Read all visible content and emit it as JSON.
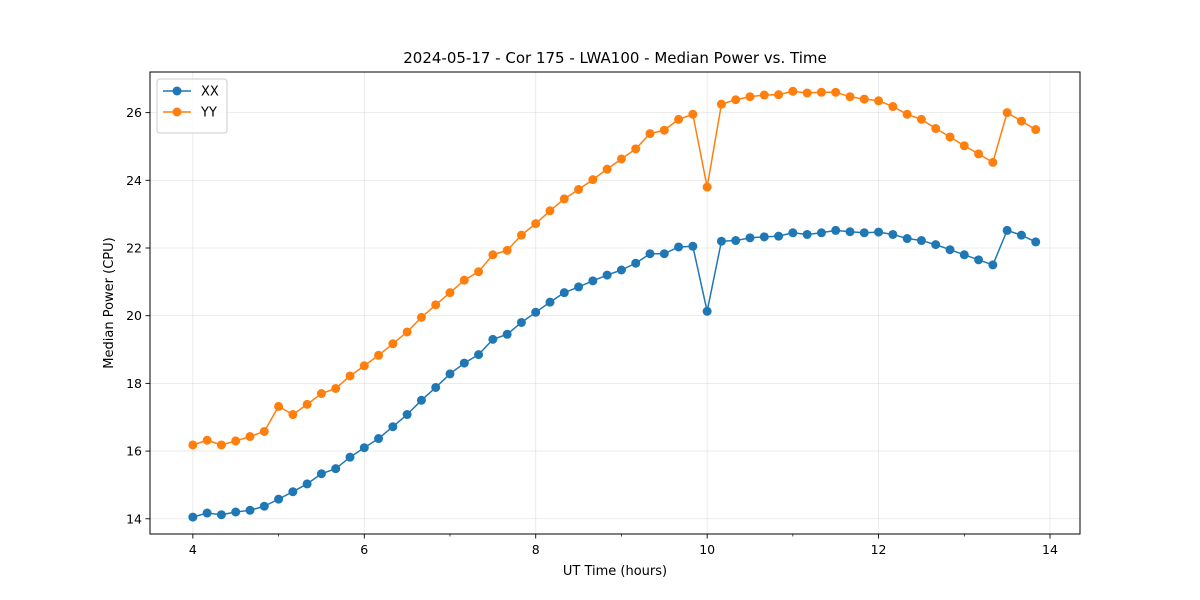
{
  "chart_data": {
    "type": "line",
    "title": "2024-05-17 - Cor 175 - LWA100 - Median Power vs. Time",
    "xlabel": "UT Time (hours)",
    "ylabel": "Median Power (CPU)",
    "xlim": [
      3.5,
      14.35
    ],
    "ylim": [
      13.55,
      27.2
    ],
    "xticks": [
      4,
      6,
      8,
      10,
      12,
      14
    ],
    "yticks": [
      14,
      16,
      18,
      20,
      22,
      24,
      26
    ],
    "grid": true,
    "legend_position": "top-left",
    "x": [
      4.0,
      4.1667,
      4.3333,
      4.5,
      4.6667,
      4.8333,
      5.0,
      5.1667,
      5.3333,
      5.5,
      5.6667,
      5.8333,
      6.0,
      6.1667,
      6.3333,
      6.5,
      6.6667,
      6.8333,
      7.0,
      7.1667,
      7.3333,
      7.5,
      7.6667,
      7.8333,
      8.0,
      8.1667,
      8.3333,
      8.5,
      8.6667,
      8.8333,
      9.0,
      9.1667,
      9.3333,
      9.5,
      9.6667,
      9.8333,
      10.0,
      10.1667,
      10.3333,
      10.5,
      10.6667,
      10.8333,
      11.0,
      11.1667,
      11.3333,
      11.5,
      11.6667,
      11.8333,
      12.0,
      12.1667,
      12.3333,
      12.5,
      12.6667,
      12.8333,
      13.0,
      13.1667,
      13.3333,
      13.5,
      13.6667,
      13.8333
    ],
    "series": [
      {
        "name": "XX",
        "color": "#1f77b4",
        "values": [
          14.05,
          14.17,
          14.12,
          14.2,
          14.25,
          14.37,
          14.58,
          14.8,
          15.03,
          15.33,
          15.48,
          15.82,
          16.1,
          16.37,
          16.72,
          17.08,
          17.5,
          17.88,
          18.28,
          18.6,
          18.85,
          19.3,
          19.45,
          19.8,
          20.1,
          20.4,
          20.68,
          20.85,
          21.03,
          21.2,
          21.35,
          21.55,
          21.83,
          21.83,
          22.03,
          22.05,
          20.13,
          22.2,
          22.22,
          22.3,
          22.33,
          22.35,
          22.45,
          22.4,
          22.45,
          22.52,
          22.48,
          22.45,
          22.47,
          22.4,
          22.28,
          22.22,
          22.1,
          21.95,
          21.8,
          21.65,
          21.5,
          22.52,
          22.38,
          22.18
        ]
      },
      {
        "name": "YY",
        "color": "#ff7f0e",
        "values": [
          16.18,
          16.32,
          16.18,
          16.3,
          16.43,
          16.58,
          17.32,
          17.08,
          17.38,
          17.7,
          17.85,
          18.22,
          18.52,
          18.83,
          19.17,
          19.52,
          19.95,
          20.32,
          20.68,
          21.05,
          21.3,
          21.8,
          21.93,
          22.38,
          22.72,
          23.1,
          23.45,
          23.73,
          24.02,
          24.33,
          24.63,
          24.93,
          25.38,
          25.48,
          25.8,
          25.95,
          23.8,
          26.25,
          26.38,
          26.47,
          26.52,
          26.53,
          26.63,
          26.58,
          26.6,
          26.6,
          26.47,
          26.4,
          26.35,
          26.18,
          25.95,
          25.8,
          25.53,
          25.28,
          25.02,
          24.78,
          24.53,
          26.0,
          25.75,
          25.5
        ]
      }
    ]
  }
}
